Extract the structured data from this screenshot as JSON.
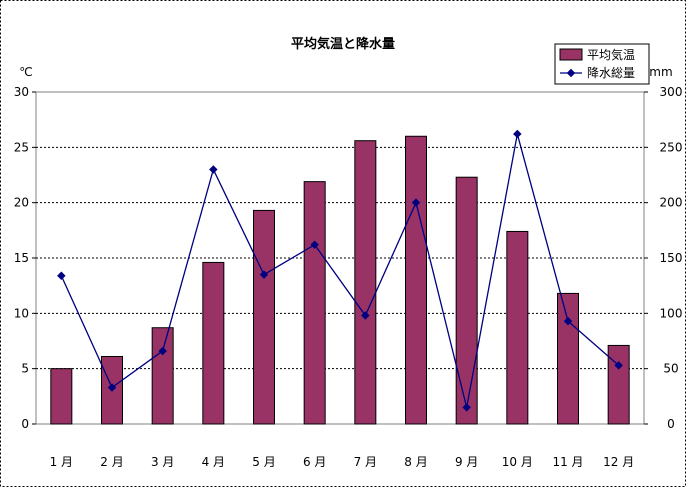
{
  "chart_data": {
    "type": "bar",
    "title": "平均気温と降水量",
    "ylabel_left": "℃",
    "ylabel_right": "mm",
    "categories": [
      "1 月",
      "2 月",
      "3 月",
      "4 月",
      "5 月",
      "6 月",
      "7 月",
      "8 月",
      "9 月",
      "10 月",
      "11 月",
      "12 月"
    ],
    "ylim_left": [
      0,
      30
    ],
    "ylim_right": [
      0,
      300
    ],
    "yticks_left": [
      "0",
      "5",
      "10",
      "15",
      "20",
      "25",
      "30"
    ],
    "yticks_right": [
      "0",
      "50",
      "100",
      "150",
      "200",
      "250",
      "300"
    ],
    "grid": true,
    "legend_position": "top-right",
    "series": [
      {
        "name": "平均気温",
        "type": "bar",
        "axis": "left",
        "color": "#993366",
        "values": [
          5.0,
          6.1,
          8.7,
          14.6,
          19.3,
          21.9,
          25.6,
          26.0,
          22.3,
          17.4,
          11.8,
          7.1
        ]
      },
      {
        "name": "降水総量",
        "type": "line",
        "axis": "right",
        "color": "#000080",
        "values": [
          134,
          33,
          66,
          230,
          135,
          162,
          98,
          200,
          15,
          262,
          93,
          53
        ]
      }
    ]
  }
}
